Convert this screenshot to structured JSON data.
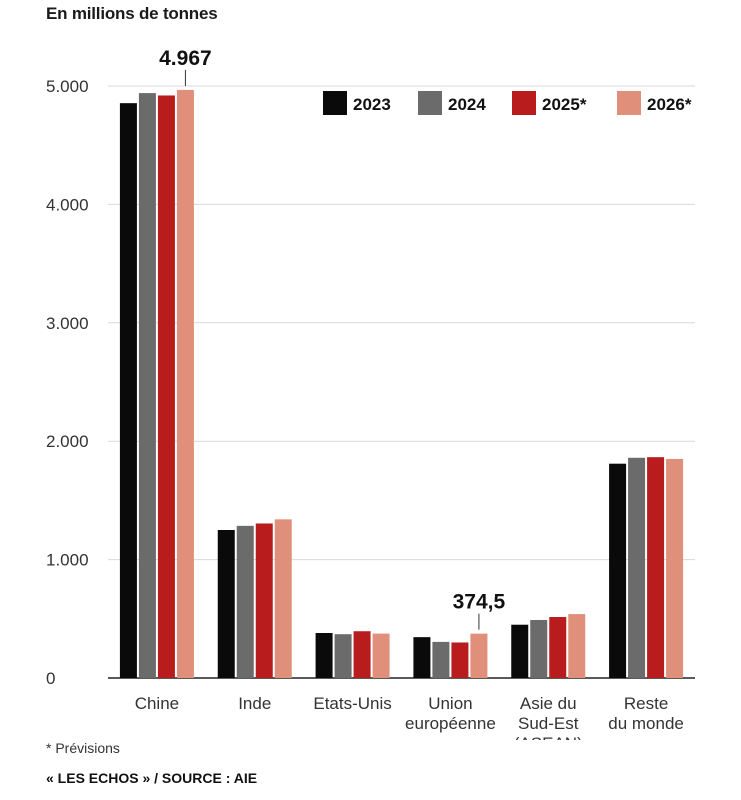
{
  "chart_data": {
    "type": "bar",
    "unit_title": "En millions de tonnes",
    "categories": [
      [
        "Chine"
      ],
      [
        "Inde"
      ],
      [
        "Etats-Unis"
      ],
      [
        "Union",
        "européenne"
      ],
      [
        "Asie du",
        "Sud-Est",
        "(ASEAN)"
      ],
      [
        "Reste",
        "du monde"
      ]
    ],
    "series": [
      {
        "name": "2023",
        "color": "#0a0a0a",
        "values": [
          4855,
          1250,
          380,
          345,
          450,
          1810
        ]
      },
      {
        "name": "2024",
        "color": "#6b6b6b",
        "values": [
          4940,
          1285,
          370,
          305,
          490,
          1860
        ]
      },
      {
        "name": "2025*",
        "color": "#b81c1c",
        "values": [
          4920,
          1305,
          395,
          300,
          515,
          1865
        ]
      },
      {
        "name": "2026*",
        "color": "#e0907a",
        "values": [
          4967,
          1340,
          375,
          374.5,
          540,
          1850
        ]
      }
    ],
    "ylim": [
      0,
      5000
    ],
    "yticks": [
      0,
      1000,
      2000,
      3000,
      4000,
      5000
    ],
    "ytick_labels": [
      "0",
      "1.000",
      "2.000",
      "3.000",
      "4.000",
      "5.000"
    ],
    "grid": true,
    "legend_position": "top-right",
    "annotations": [
      {
        "label": "4.967",
        "category_index": 0,
        "series_index": 3
      },
      {
        "label": "374,5",
        "category_index": 3,
        "series_index": 3
      }
    ]
  },
  "footnote": "* Prévisions",
  "source": "« LES ECHOS » / SOURCE : AIE"
}
